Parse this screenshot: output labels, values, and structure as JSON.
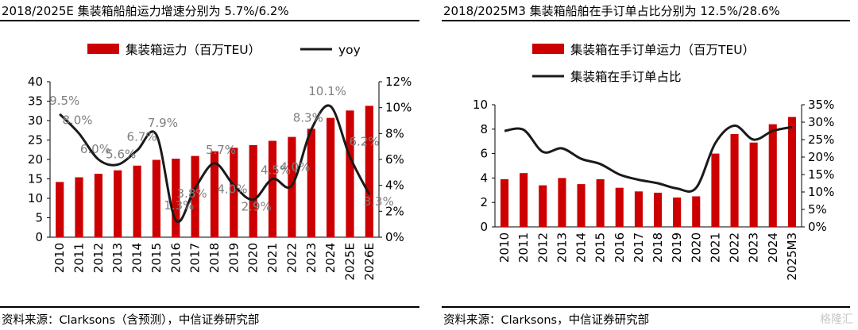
{
  "watermark": "格隆汇",
  "colors": {
    "bar": "#cc0000",
    "line": "#1a1a1a",
    "label": "#7f7f7f"
  },
  "left": {
    "title": "2018/2025E 集装箱船舶运力增速分别为 5.7%/6.2%",
    "source": "资料来源：Clarksons（含预测），中信证券研究部",
    "chart_data": {
      "type": "bar",
      "categories": [
        "2010",
        "2011",
        "2012",
        "2013",
        "2014",
        "2015",
        "2016",
        "2017",
        "2018",
        "2019",
        "2020",
        "2021",
        "2022",
        "2023",
        "2024",
        "2025E",
        "2026E"
      ],
      "series": [
        {
          "name": "集装箱运力（百万TEU）",
          "type": "bar",
          "axis": "left",
          "values": [
            14.2,
            15.4,
            16.3,
            17.2,
            18.4,
            19.9,
            20.2,
            20.9,
            22.1,
            23.0,
            23.7,
            24.8,
            25.8,
            27.9,
            30.7,
            32.6,
            33.8
          ]
        },
        {
          "name": "yoy",
          "type": "line",
          "axis": "right",
          "values": [
            9.5,
            8.0,
            6.0,
            5.6,
            6.7,
            7.9,
            1.3,
            3.8,
            5.7,
            4.0,
            2.9,
            4.5,
            4.0,
            8.3,
            10.1,
            6.2,
            3.3
          ],
          "labels": [
            "9.5%",
            "8.0%",
            "6.0%",
            "5.6%",
            "6.7%",
            "7.9%",
            "1.3%",
            "3.8%",
            "5.7%",
            "4.0%",
            "2.9%",
            "4.5%",
            "4.0%",
            "8.3%",
            "10.1%",
            "6.2%",
            "3.3%"
          ]
        }
      ],
      "yleft": {
        "min": 0,
        "max": 40,
        "ticks": [
          "0",
          "5",
          "10",
          "15",
          "20",
          "25",
          "30",
          "35",
          "40"
        ]
      },
      "yright": {
        "min": 0,
        "max": 12,
        "ticks": [
          "0%",
          "2%",
          "4%",
          "6%",
          "8%",
          "10%",
          "12%"
        ]
      },
      "legend": "top"
    }
  },
  "right": {
    "title": "2018/2025M3 集装箱船舶在手订单占比分别为 12.5%/28.6%",
    "source": "资料来源：Clarksons，中信证券研究部",
    "chart_data": {
      "type": "bar",
      "categories": [
        "2010",
        "2011",
        "2012",
        "2013",
        "2014",
        "2015",
        "2016",
        "2017",
        "2018",
        "2019",
        "2020",
        "2021",
        "2022",
        "2023",
        "2024",
        "2025M3"
      ],
      "series": [
        {
          "name": "集装箱在手订单运力（百万TEU）",
          "type": "bar",
          "axis": "left",
          "values": [
            3.9,
            4.4,
            3.4,
            4.0,
            3.5,
            3.9,
            3.2,
            2.9,
            2.8,
            2.4,
            2.5,
            6.0,
            7.6,
            6.9,
            8.4,
            9.0
          ]
        },
        {
          "name": "集装箱在手订单占比",
          "type": "line",
          "axis": "right",
          "values": [
            27.5,
            27.8,
            21.5,
            22.5,
            19.5,
            18.0,
            15.0,
            13.5,
            12.5,
            11.0,
            11.2,
            24.0,
            29.0,
            25.0,
            27.5,
            28.6
          ]
        }
      ],
      "yleft": {
        "min": 0,
        "max": 10,
        "ticks": [
          "0",
          "2",
          "4",
          "6",
          "8",
          "10"
        ]
      },
      "yright": {
        "min": 0,
        "max": 35,
        "ticks": [
          "0%",
          "5%",
          "10%",
          "15%",
          "20%",
          "25%",
          "30%",
          "35%"
        ]
      },
      "legend": "top"
    }
  }
}
